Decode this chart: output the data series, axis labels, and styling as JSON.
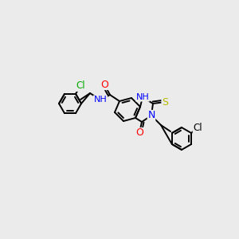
{
  "bg_color": "#ebebeb",
  "bond_color": "#000000",
  "atom_colors": {
    "N": "#0000ff",
    "O": "#ff0000",
    "S": "#b8b800",
    "Cl_green": "#00aa00",
    "Cl_black": "#000000"
  },
  "figsize": [
    3.0,
    3.0
  ],
  "dpi": 100
}
